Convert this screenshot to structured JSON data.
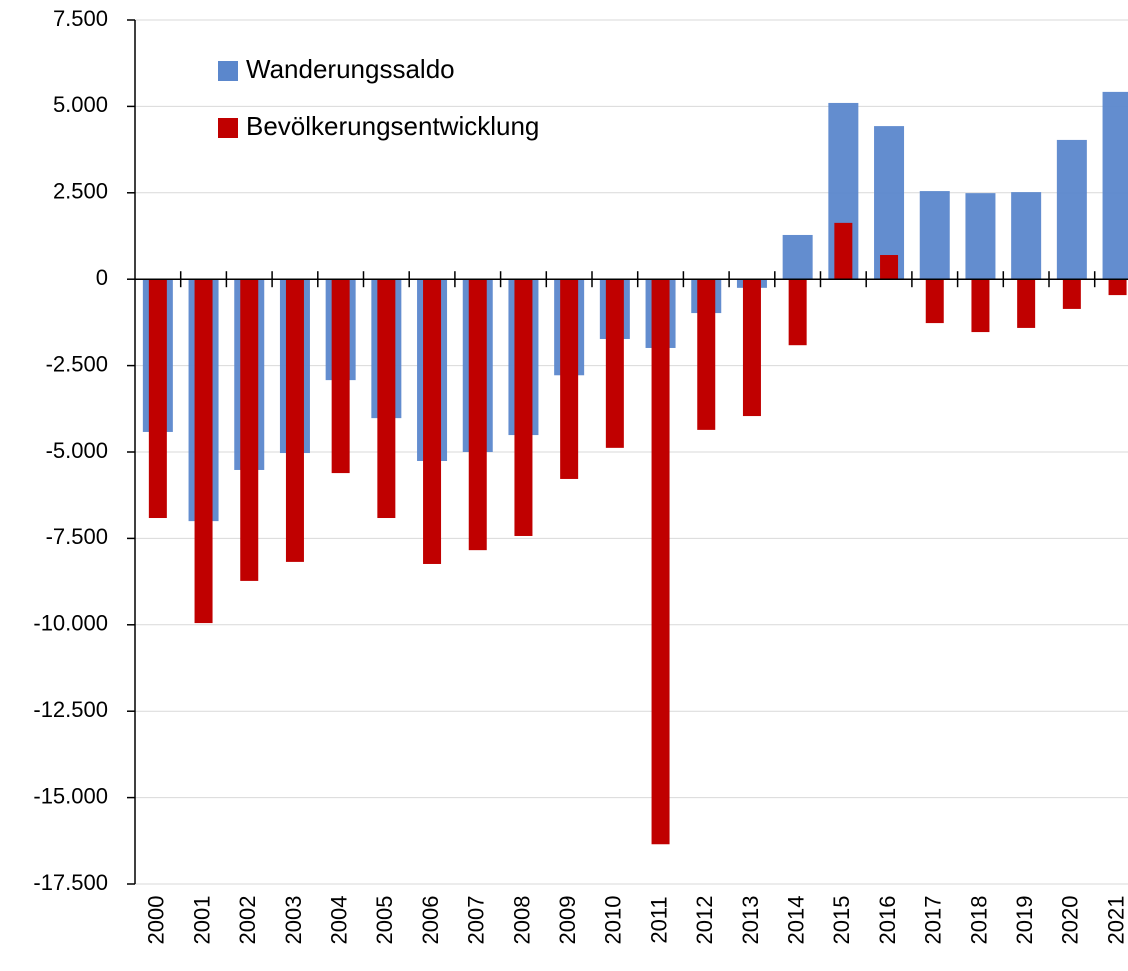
{
  "chart_data": {
    "type": "bar",
    "categories": [
      "2000",
      "2001",
      "2002",
      "2003",
      "2004",
      "2005",
      "2006",
      "2007",
      "2008",
      "2009",
      "2010",
      "2011",
      "2012",
      "2013",
      "2014",
      "2015",
      "2016",
      "2017",
      "2018",
      "2019",
      "2020",
      "2021"
    ],
    "series": [
      {
        "name": "Wanderungssaldo",
        "color": "#5b87cc",
        "values": [
          -4420,
          -7000,
          -5520,
          -5030,
          -2920,
          -4020,
          -5260,
          -5000,
          -4510,
          -2780,
          -1730,
          -1990,
          -980,
          -250,
          1280,
          5100,
          4430,
          2550,
          2490,
          2520,
          4030,
          5420
        ]
      },
      {
        "name": "Bevölkerungsentwicklung",
        "color": "#c00000",
        "values": [
          -6910,
          -9950,
          -8730,
          -8180,
          -5610,
          -6910,
          -8240,
          -7840,
          -7430,
          -5780,
          -4880,
          -16350,
          -4360,
          -3960,
          -1910,
          1630,
          700,
          -1270,
          -1530,
          -1410,
          -860,
          -460
        ]
      }
    ],
    "ylim": [
      -17500,
      7500
    ],
    "yticks": [
      {
        "value": -17500,
        "label": "-17.500"
      },
      {
        "value": -15000,
        "label": "-15.000"
      },
      {
        "value": -12500,
        "label": "-12.500"
      },
      {
        "value": -10000,
        "label": "-10.000"
      },
      {
        "value": -7500,
        "label": "-7.500"
      },
      {
        "value": -5000,
        "label": "-5.000"
      },
      {
        "value": -2500,
        "label": "-2.500"
      },
      0,
      {
        "value": 2500,
        "label": "2.500"
      },
      {
        "value": 5000,
        "label": "5.000"
      },
      {
        "value": 7500,
        "label": "7.500"
      }
    ],
    "grid": true
  }
}
